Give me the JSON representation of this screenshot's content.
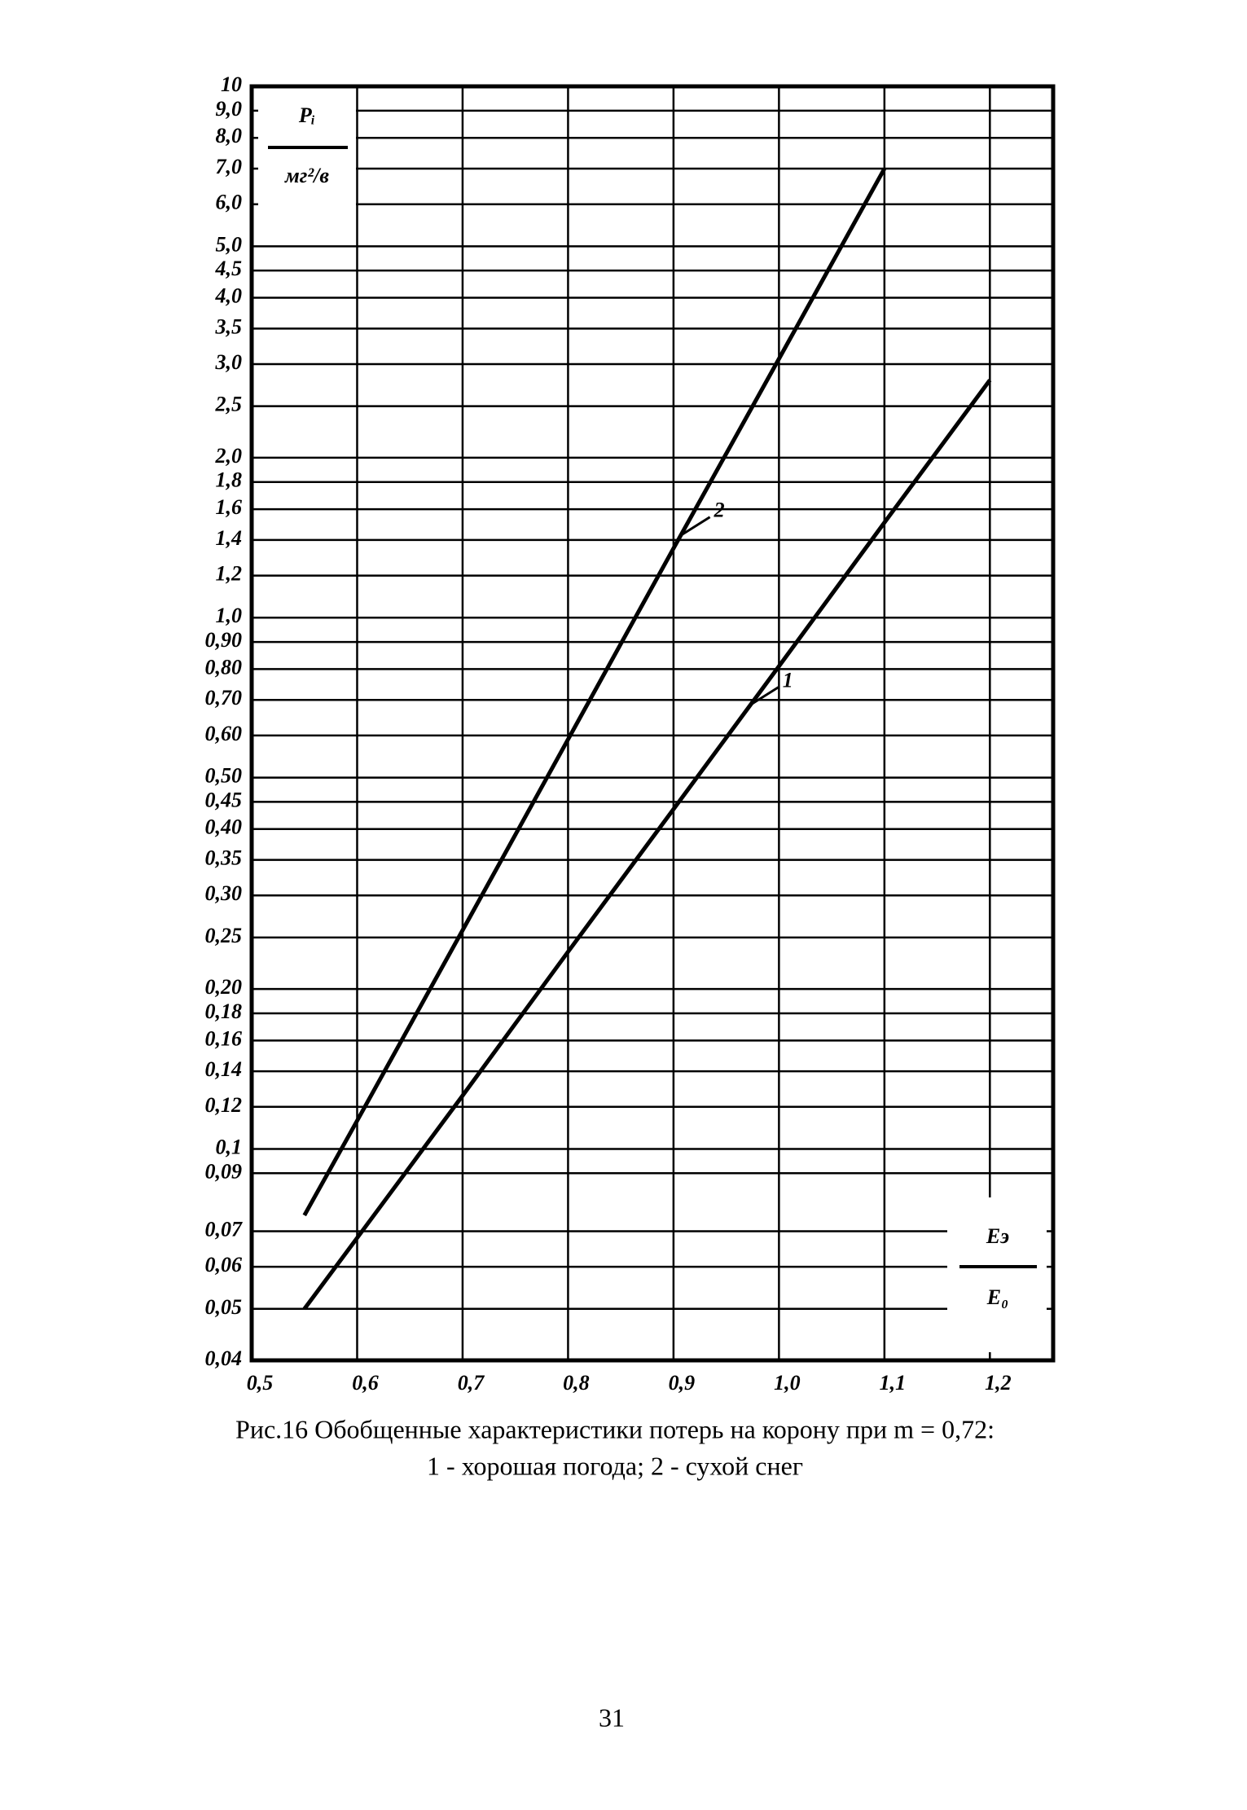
{
  "chart_data": {
    "type": "line",
    "log_y": true,
    "grid": true,
    "ylabel": {
      "num": "Pᵢ",
      "den": "мг²/в"
    },
    "xlabel": {
      "num": "Eэ",
      "den": "E₀"
    },
    "xlim": [
      0.5,
      1.26
    ],
    "ylim": [
      0.04,
      10
    ],
    "xticks": [
      {
        "value": 0.5,
        "label": "0,5"
      },
      {
        "value": 0.6,
        "label": "0,6"
      },
      {
        "value": 0.7,
        "label": "0,7"
      },
      {
        "value": 0.8,
        "label": "0,8"
      },
      {
        "value": 0.9,
        "label": "0,9"
      },
      {
        "value": 1.0,
        "label": "1,0"
      },
      {
        "value": 1.1,
        "label": "1,1"
      },
      {
        "value": 1.2,
        "label": "1,2"
      }
    ],
    "yticks": [
      10,
      {
        "value": 9,
        "label": "9,0"
      },
      {
        "value": 8,
        "label": "8,0"
      },
      {
        "value": 7,
        "label": "7,0"
      },
      {
        "value": 6,
        "label": "6,0"
      },
      {
        "value": 5,
        "label": "5,0"
      },
      {
        "value": 4.5,
        "label": "4,5"
      },
      {
        "value": 4,
        "label": "4,0"
      },
      {
        "value": 3.5,
        "label": "3,5"
      },
      {
        "value": 3,
        "label": "3,0"
      },
      {
        "value": 2.5,
        "label": "2,5"
      },
      {
        "value": 2,
        "label": "2,0"
      },
      {
        "value": 1.8,
        "label": "1,8"
      },
      {
        "value": 1.6,
        "label": "1,6"
      },
      {
        "value": 1.4,
        "label": "1,4"
      },
      {
        "value": 1.2,
        "label": "1,2"
      },
      {
        "value": 1,
        "label": "1,0"
      },
      {
        "value": 0.9,
        "label": "0,90"
      },
      {
        "value": 0.8,
        "label": "0,80"
      },
      {
        "value": 0.7,
        "label": "0,70"
      },
      {
        "value": 0.6,
        "label": "0,60"
      },
      {
        "value": 0.5,
        "label": "0,50"
      },
      {
        "value": 0.45,
        "label": "0,45"
      },
      {
        "value": 0.4,
        "label": "0,40"
      },
      {
        "value": 0.35,
        "label": "0,35"
      },
      {
        "value": 0.3,
        "label": "0,30"
      },
      {
        "value": 0.25,
        "label": "0,25"
      },
      {
        "value": 0.2,
        "label": "0,20"
      },
      {
        "value": 0.18,
        "label": "0,18"
      },
      {
        "value": 0.16,
        "label": "0,16"
      },
      {
        "value": 0.14,
        "label": "0,14"
      },
      {
        "value": 0.12,
        "label": "0,12"
      },
      {
        "value": 0.1,
        "label": "0,1"
      },
      {
        "value": 0.09,
        "label": "0,09"
      },
      {
        "value": 0.07,
        "label": "0,07"
      },
      {
        "value": 0.06,
        "label": "0,06"
      },
      {
        "value": 0.05,
        "label": "0,05"
      },
      {
        "value": 0.04,
        "label": "0,04"
      }
    ],
    "series": [
      {
        "name": "1",
        "color": "#000000",
        "x": [
          0.55,
          0.6,
          0.7,
          0.8,
          0.9,
          1.0,
          1.1,
          1.2
        ],
        "values": [
          0.05,
          0.068,
          0.126,
          0.235,
          0.436,
          0.81,
          1.51,
          2.8
        ]
      },
      {
        "name": "2",
        "color": "#000000",
        "x": [
          0.55,
          0.6,
          0.7,
          0.8,
          0.9,
          1.0,
          1.1
        ],
        "values": [
          0.075,
          0.113,
          0.258,
          0.59,
          1.35,
          3.07,
          7.0
        ]
      }
    ]
  },
  "caption": {
    "line1": "Рис.16 Обобщенные характеристики потерь на корону при m = 0,72:",
    "line2": "1 - хорошая погода; 2 - сухой снег"
  },
  "page_number": "31"
}
